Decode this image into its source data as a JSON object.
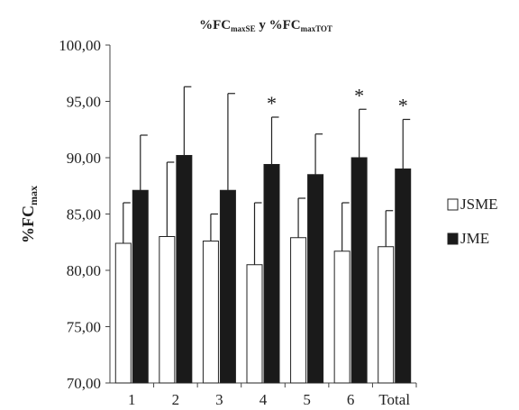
{
  "chart_data": {
    "type": "bar",
    "title": {
      "main1": "%FC",
      "sub1": "maxSE",
      "mid": " y %FC",
      "sub2": "maxTOT"
    },
    "ylabel": {
      "main": "%FC",
      "sub": "max"
    },
    "xlabel": "",
    "categories": [
      "1",
      "2",
      "3",
      "4",
      "5",
      "6",
      "Total"
    ],
    "ylim": [
      70,
      100
    ],
    "yticks": [
      70,
      75,
      80,
      85,
      90,
      95,
      100
    ],
    "yticklabels": [
      "70,00",
      "75,00",
      "80,00",
      "85,00",
      "90,00",
      "95,00",
      "100,00"
    ],
    "legend_position": "right",
    "series": [
      {
        "name": "JSME",
        "color": "#ffffff",
        "values": [
          82.4,
          83.0,
          82.6,
          80.5,
          82.9,
          81.7,
          82.1
        ],
        "errors": [
          3.6,
          6.6,
          2.4,
          5.5,
          3.5,
          4.3,
          3.2
        ]
      },
      {
        "name": "JME",
        "color": "#1a1a1a",
        "values": [
          87.1,
          90.2,
          87.1,
          89.4,
          88.5,
          90.0,
          89.0
        ],
        "errors": [
          4.9,
          6.1,
          8.6,
          4.2,
          3.6,
          4.3,
          4.4
        ]
      }
    ],
    "annotations": [
      "",
      "",
      "",
      "*",
      "",
      "*",
      "*"
    ]
  }
}
